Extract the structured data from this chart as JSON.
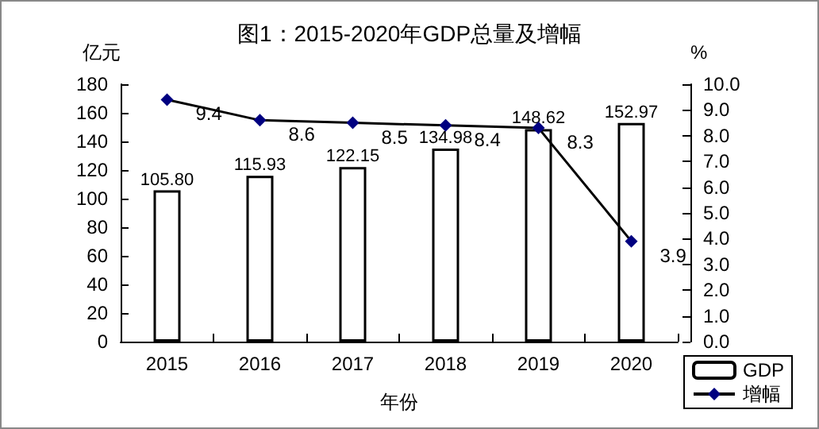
{
  "chart_data": {
    "type": "bar",
    "title": "图1：2015-2020年GDP总量及增幅",
    "xlabel": "年份",
    "ylabel": "亿元",
    "y2label": "%",
    "categories": [
      "2015",
      "2016",
      "2017",
      "2018",
      "2019",
      "2020"
    ],
    "series": [
      {
        "name": "GDP",
        "color": "#ffffff",
        "values": [
          105.8,
          115.93,
          122.15,
          134.98,
          148.62,
          152.97
        ],
        "value_labels": [
          "105.80",
          "115.93",
          "122.15",
          "134.98",
          "148.62",
          "152.97"
        ]
      },
      {
        "name": "增幅",
        "type": "line",
        "axis": "y2",
        "color": "#000080",
        "marker": "diamond",
        "values": [
          9.4,
          8.6,
          8.5,
          8.4,
          8.3,
          3.9
        ],
        "value_labels": [
          "9.4",
          "8.6",
          "8.5",
          "8.4",
          "8.3",
          "3.9"
        ]
      }
    ],
    "ylim": [
      0,
      180
    ],
    "yticks": [
      0,
      20,
      40,
      60,
      80,
      100,
      120,
      140,
      160,
      180
    ],
    "y2lim": [
      0,
      10
    ],
    "y2ticks": [
      {
        "value": 0,
        "label": "0.0"
      },
      {
        "value": 1,
        "label": "1.0"
      },
      {
        "value": 2,
        "label": "2.0"
      },
      {
        "value": 3,
        "label": "3.0"
      },
      {
        "value": 4,
        "label": "4.0"
      },
      {
        "value": 5,
        "label": "5.0"
      },
      {
        "value": 6,
        "label": "6.0"
      },
      {
        "value": 7,
        "label": "7.0"
      },
      {
        "value": 8,
        "label": "8.0"
      },
      {
        "value": 9,
        "label": "9.0"
      },
      {
        "value": 10,
        "label": "10.0"
      }
    ],
    "legend": "bottom right",
    "grid": false
  }
}
